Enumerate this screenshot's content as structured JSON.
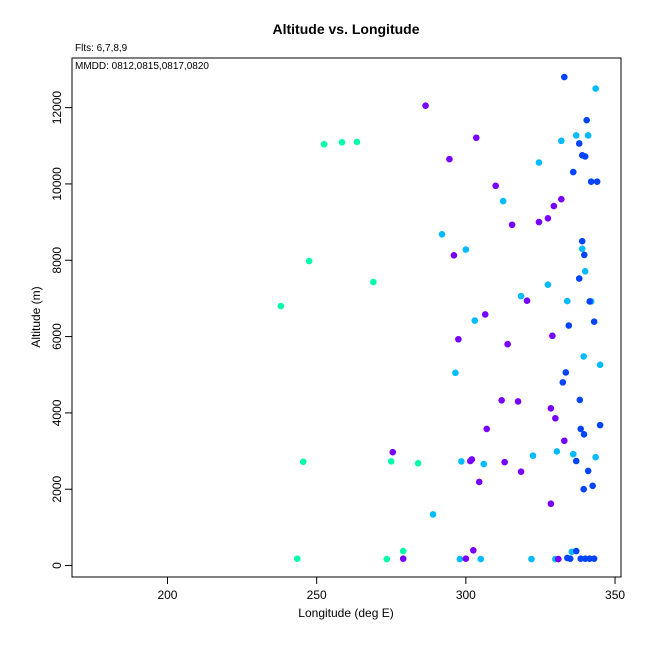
{
  "chart_data": {
    "type": "scatter",
    "title": "Altitude vs. Longitude",
    "xlabel": "Longitude (deg E)",
    "ylabel": "Altitude (m)",
    "xlim": [
      168,
      352
    ],
    "ylim": [
      -300,
      13300
    ],
    "xticks": [
      200,
      250,
      300,
      350
    ],
    "yticks": [
      0,
      2000,
      4000,
      6000,
      8000,
      10000,
      12000
    ],
    "annotations": [
      "Flts: 6,7,8,9",
      "MMDD: 0812,0815,0817,0820"
    ],
    "grid": false,
    "series": [
      {
        "color": "#00FFAA",
        "points": [
          [
            238,
            6800
          ],
          [
            243.5,
            180
          ],
          [
            245.5,
            2720
          ],
          [
            247.5,
            7980
          ],
          [
            252.5,
            11040
          ],
          [
            258.5,
            11090
          ],
          [
            263.5,
            11100
          ],
          [
            269,
            7430
          ],
          [
            273.5,
            170
          ],
          [
            275,
            2730
          ],
          [
            279,
            380
          ],
          [
            284,
            2680
          ]
        ]
      },
      {
        "color": "#00BBFF",
        "points": [
          [
            289,
            1340
          ],
          [
            292,
            8680
          ],
          [
            296.5,
            5050
          ],
          [
            298,
            170
          ],
          [
            298.5,
            2730
          ],
          [
            300,
            8280
          ],
          [
            303,
            6420
          ],
          [
            305,
            170
          ],
          [
            306,
            2660
          ],
          [
            312.5,
            9550
          ],
          [
            318.5,
            7060
          ],
          [
            322,
            170
          ],
          [
            322.5,
            2880
          ],
          [
            324.5,
            10560
          ],
          [
            327.5,
            7360
          ],
          [
            330.5,
            2990
          ],
          [
            330,
            170
          ],
          [
            332,
            11130
          ],
          [
            334,
            6930
          ],
          [
            335.5,
            360
          ],
          [
            336,
            2920
          ],
          [
            337,
            11270
          ],
          [
            339,
            8300
          ],
          [
            339.5,
            5480
          ],
          [
            340,
            7710
          ],
          [
            341,
            11270
          ],
          [
            342,
            6920
          ],
          [
            343.5,
            2840
          ],
          [
            343.5,
            12500
          ],
          [
            345,
            5260
          ]
        ]
      },
      {
        "color": "#0044FF",
        "points": [
          [
            333,
            12800
          ],
          [
            332.5,
            4800
          ],
          [
            333.5,
            5060
          ],
          [
            334,
            200
          ],
          [
            334.5,
            6290
          ],
          [
            335,
            180
          ],
          [
            336,
            10310
          ],
          [
            337,
            380
          ],
          [
            337,
            2740
          ],
          [
            338,
            7520
          ],
          [
            338,
            11060
          ],
          [
            338.2,
            4340
          ],
          [
            338.5,
            3580
          ],
          [
            338.5,
            180
          ],
          [
            339,
            10750
          ],
          [
            339,
            8500
          ],
          [
            339.5,
            2000
          ],
          [
            339.6,
            3440
          ],
          [
            339.7,
            8140
          ],
          [
            340,
            10720
          ],
          [
            340,
            180
          ],
          [
            340.5,
            11670
          ],
          [
            341,
            2480
          ],
          [
            341.5,
            6920
          ],
          [
            341.5,
            180
          ],
          [
            342,
            10060
          ],
          [
            342.5,
            2090
          ],
          [
            343,
            6390
          ],
          [
            343,
            180
          ],
          [
            344,
            10060
          ],
          [
            345,
            3680
          ]
        ]
      },
      {
        "color": "#7700FF",
        "points": [
          [
            275.5,
            2970
          ],
          [
            279,
            180
          ],
          [
            286.5,
            12050
          ],
          [
            294.5,
            10650
          ],
          [
            296,
            8130
          ],
          [
            297.5,
            5930
          ],
          [
            300,
            180
          ],
          [
            301.5,
            2740
          ],
          [
            302,
            2780
          ],
          [
            302.5,
            400
          ],
          [
            303.5,
            11210
          ],
          [
            304.5,
            2190
          ],
          [
            306.5,
            6580
          ],
          [
            307,
            3580
          ],
          [
            310,
            9950
          ],
          [
            312,
            4330
          ],
          [
            313,
            2710
          ],
          [
            314,
            5800
          ],
          [
            315.5,
            8930
          ],
          [
            317.5,
            4300
          ],
          [
            318.5,
            2460
          ],
          [
            320.5,
            6940
          ],
          [
            324.5,
            9000
          ],
          [
            327.5,
            9100
          ],
          [
            328.5,
            1620
          ],
          [
            328.5,
            4120
          ],
          [
            329,
            6020
          ],
          [
            329.5,
            9420
          ],
          [
            330,
            3860
          ],
          [
            331,
            170
          ],
          [
            332,
            9600
          ],
          [
            333,
            3270
          ]
        ]
      }
    ]
  }
}
